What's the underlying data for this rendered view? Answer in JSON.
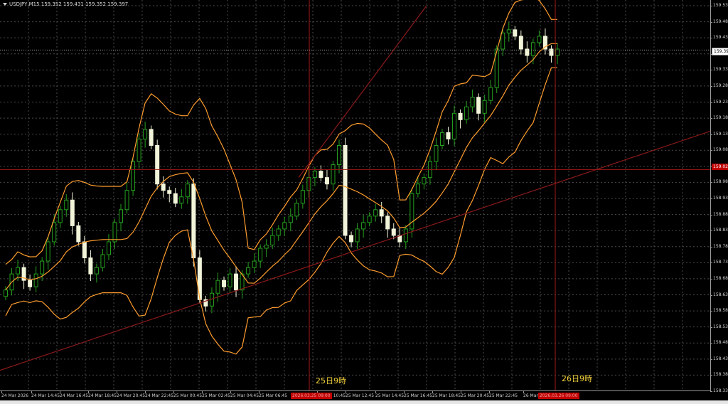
{
  "header": {
    "text": "USDJPY,M15  159.352 159.431 159.352 159.397"
  },
  "price_axis": {
    "labels": [
      "159.535",
      "159.485",
      "159.435",
      "159.385",
      "159.335",
      "159.285",
      "159.235",
      "159.185",
      "159.135",
      "159.085",
      "159.035",
      "158.985",
      "158.935",
      "158.885",
      "158.835",
      "158.785",
      "158.735",
      "158.685",
      "158.635",
      "158.585",
      "158.535",
      "158.485",
      "158.435",
      "158.385",
      "158.335"
    ],
    "current_price": "159.397",
    "hline_price": "159.025"
  },
  "time_axis": {
    "labels": [
      "24 Mar 2026",
      "24 Mar 14:45",
      "24 Mar 16:45",
      "24 Mar 18:45",
      "24 Mar 20:45",
      "24 Mar 22:45",
      "25 Mar 00:45",
      "25 Mar 02:45",
      "25 Mar 04:45",
      "25 Mar 06:45",
      "25 Mar 10:45",
      "25 Mar 12:45",
      "25 Mar 14:45",
      "25 Mar 16:45",
      "25 Mar 18:45",
      "25 Mar 20:45",
      "25 Mar 22:45",
      "26 Mar"
    ],
    "vline1_label": "2026.03.25 09:00",
    "vline2_label": "2026.03.26 09:00"
  },
  "annotations": {
    "vline1_text": "25日9時",
    "vline2_text": "26日9時"
  },
  "colors": {
    "background": "#000000",
    "grid": "#4a4a4a",
    "candle_bull": "#25a11e",
    "candle_bear": "#f2f5d9",
    "bollinger": "#ff9d2e",
    "trend_lines": "#8b1a1a",
    "marker_lines": "#a01818",
    "annotation_text": "#f4d33b"
  },
  "chart_data": {
    "type": "candlestick",
    "symbol": "USDJPY",
    "timeframe": "M15",
    "ylim": [
      158.335,
      159.535
    ],
    "grid": true,
    "indicators": [
      "Bollinger Bands"
    ],
    "close": [
      158.65,
      158.7,
      158.72,
      158.68,
      158.66,
      158.7,
      158.74,
      158.8,
      158.86,
      158.9,
      158.93,
      158.85,
      158.8,
      158.75,
      158.7,
      158.72,
      158.76,
      158.8,
      158.86,
      158.9,
      158.96,
      159.05,
      159.12,
      159.15,
      159.1,
      158.98,
      158.96,
      158.95,
      158.92,
      158.94,
      158.98,
      158.75,
      158.62,
      158.6,
      158.64,
      158.68,
      158.66,
      158.7,
      158.65,
      158.7,
      158.72,
      158.74,
      158.78,
      158.79,
      158.82,
      158.84,
      158.86,
      158.88,
      158.92,
      158.96,
      159.0,
      159.02,
      159.0,
      158.98,
      159.04,
      159.1,
      158.82,
      158.8,
      158.84,
      158.86,
      158.88,
      158.9,
      158.88,
      158.84,
      158.82,
      158.8,
      158.84,
      158.95,
      158.98,
      159.0,
      159.05,
      159.1,
      159.14,
      159.12,
      159.2,
      159.18,
      159.22,
      159.25,
      159.2,
      159.24,
      159.28,
      159.4,
      159.45,
      159.46,
      159.44,
      159.4,
      159.38,
      159.42,
      159.44,
      159.4,
      159.38,
      159.4
    ]
  }
}
